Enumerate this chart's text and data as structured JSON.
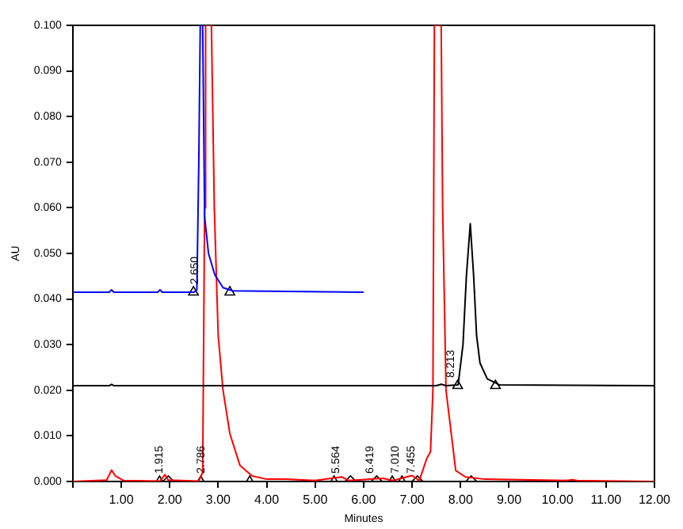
{
  "chart_data": {
    "type": "line",
    "xlabel": "Minutes",
    "ylabel": "AU",
    "xlim": [
      0,
      12
    ],
    "ylim": [
      0,
      0.1
    ],
    "xticks": [
      {
        "value": 0,
        "label": null
      },
      {
        "value": 1,
        "label": "1.00"
      },
      {
        "value": 2,
        "label": "2.00"
      },
      {
        "value": 3,
        "label": "3.00"
      },
      {
        "value": 4,
        "label": "4.00"
      },
      {
        "value": 5,
        "label": "5.00"
      },
      {
        "value": 6,
        "label": "6.00"
      },
      {
        "value": 7,
        "label": "7.00"
      },
      {
        "value": 8,
        "label": "8.00"
      },
      {
        "value": 9,
        "label": "9.00"
      },
      {
        "value": 10,
        "label": "10.00"
      },
      {
        "value": 11,
        "label": "11.00"
      },
      {
        "value": 12,
        "label": "12.00"
      }
    ],
    "yticks": [
      {
        "value": 0,
        "label": "0.000"
      },
      {
        "value": 0.01,
        "label": "0.010"
      },
      {
        "value": 0.02,
        "label": "0.020"
      },
      {
        "value": 0.03,
        "label": "0.030"
      },
      {
        "value": 0.04,
        "label": "0.040"
      },
      {
        "value": 0.05,
        "label": "0.050"
      },
      {
        "value": 0.06,
        "label": "0.060"
      },
      {
        "value": 0.07,
        "label": "0.070"
      },
      {
        "value": 0.08,
        "label": "0.080"
      },
      {
        "value": 0.09,
        "label": "0.090"
      },
      {
        "value": 0.1,
        "label": "0.100"
      }
    ],
    "grid": false,
    "legend": false,
    "marker": "none",
    "line_style": "solid",
    "series": [
      {
        "color": "#0000ff",
        "x": [
          0,
          0.75,
          0.8,
          0.85,
          1.75,
          1.8,
          1.85,
          2.5,
          2.56,
          2.6,
          2.63,
          2.68,
          2.72,
          2.8,
          2.93,
          3.1,
          3.3,
          6.0
        ],
        "values": [
          0.0415,
          0.0415,
          0.042,
          0.0415,
          0.0415,
          0.042,
          0.0415,
          0.0415,
          0.042,
          0.07,
          0.1,
          0.1,
          0.058,
          0.05,
          0.0453,
          0.0425,
          0.0418,
          0.0415
        ]
      },
      {
        "color": "#000000",
        "x": [
          0,
          0.75,
          0.8,
          0.85,
          7.5,
          7.6,
          7.7,
          7.95,
          8.05,
          8.12,
          8.2,
          8.27,
          8.33,
          8.4,
          8.55,
          8.8,
          12
        ],
        "values": [
          0.021,
          0.021,
          0.0213,
          0.021,
          0.021,
          0.0213,
          0.021,
          0.0212,
          0.03,
          0.045,
          0.0565,
          0.045,
          0.032,
          0.026,
          0.0225,
          0.0212,
          0.021
        ]
      },
      {
        "color": "#ff0000",
        "x": [
          0,
          0.7,
          0.8,
          0.88,
          0.95,
          1.05,
          1.8,
          1.9,
          1.97,
          2.6,
          2.68,
          2.72,
          2.74,
          2.8,
          2.86,
          2.92,
          3.0,
          3.1,
          3.24,
          3.45,
          3.7,
          4.0,
          4.4,
          5.0,
          5.55,
          5.7,
          6.4,
          6.6,
          7.0,
          7.15,
          7.3,
          7.38,
          7.43,
          7.46,
          7.6,
          7.63,
          7.7,
          7.9,
          8.1,
          8.5,
          10.2,
          10.3,
          10.4,
          12
        ],
        "values": [
          0,
          0.0003,
          0.0025,
          0.0012,
          0.0008,
          0.0002,
          0.0001,
          0.0015,
          0.0003,
          0.0001,
          0.002,
          0.06,
          0.1,
          0.1,
          0.1,
          0.06,
          0.032,
          0.02,
          0.0105,
          0.0035,
          0.0012,
          0.0005,
          0.0005,
          0.0002,
          0.001,
          0.0002,
          0.0007,
          0.0002,
          0.0013,
          0.0002,
          0.005,
          0.0065,
          0.02,
          0.1,
          0.1,
          0.06,
          0.02,
          0.0024,
          0.001,
          0.0005,
          0.0002,
          0.0004,
          0.0002,
          0
        ]
      },
      {
        "type": "scatter",
        "marker": "triangle",
        "color": "#000000",
        "x": [
          2.49,
          3.24,
          7.94,
          8.72,
          1.79,
          2.64,
          3.65,
          5.39,
          6.59,
          6.79
        ],
        "values": [
          0.0415,
          0.0415,
          0.021,
          0.021,
          0,
          0,
          0,
          0,
          0,
          0
        ]
      },
      {
        "type": "scatter",
        "marker": "diamond",
        "color": "#000000",
        "x": [
          1.97,
          5.73,
          6.27,
          7.11,
          8.22
        ],
        "values": [
          0,
          0,
          0,
          0,
          0
        ]
      }
    ],
    "annotations": [
      {
        "text": "2.650",
        "x": 2.65,
        "y": 0.0415
      },
      {
        "text": "8.213",
        "x": 7.94,
        "y": 0.021
      },
      {
        "text": "1.915",
        "x": 1.915,
        "y": 0
      },
      {
        "text": "2.786",
        "x": 2.786,
        "y": 0
      },
      {
        "text": "5.564",
        "x": 5.564,
        "y": 0
      },
      {
        "text": "6.419",
        "x": 6.27,
        "y": 0
      },
      {
        "text": "7.010",
        "x": 6.79,
        "y": 0
      },
      {
        "text": "7.455",
        "x": 7.11,
        "y": 0
      }
    ]
  }
}
